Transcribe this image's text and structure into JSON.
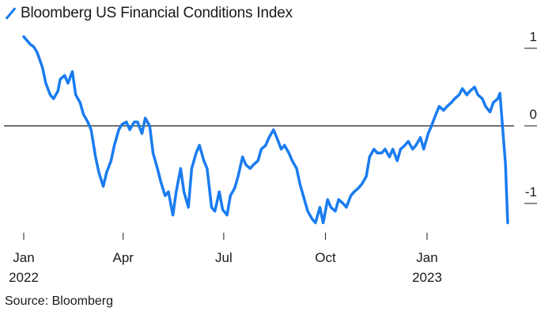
{
  "chart_data": {
    "type": "line",
    "title": "",
    "legend": "Bloomberg US Financial Conditions Index",
    "source": "Source: Bloomberg",
    "xlabel": "",
    "ylabel": "",
    "ylim": [
      -1.3,
      1.25
    ],
    "yticks": [
      {
        "value": 1,
        "label": "1"
      },
      {
        "value": 0,
        "label": "0"
      },
      {
        "value": -1,
        "label": "-1"
      }
    ],
    "xticks": [
      {
        "date": "2022-01-01",
        "label": "Jan",
        "sublabel": "2022"
      },
      {
        "date": "2022-04-01",
        "label": "Apr",
        "sublabel": ""
      },
      {
        "date": "2022-07-01",
        "label": "Jul",
        "sublabel": ""
      },
      {
        "date": "2022-10-01",
        "label": "Oct",
        "sublabel": ""
      },
      {
        "date": "2023-01-01",
        "label": "Jan",
        "sublabel": "2023"
      }
    ],
    "grid": false,
    "zero_line": true,
    "color": "#1a7cf0",
    "series": [
      {
        "name": "Bloomberg US Financial Conditions Index",
        "points": [
          [
            "2022-01-01",
            1.15
          ],
          [
            "2022-01-04",
            1.1
          ],
          [
            "2022-01-07",
            1.05
          ],
          [
            "2022-01-10",
            1.02
          ],
          [
            "2022-01-13",
            0.95
          ],
          [
            "2022-01-18",
            0.75
          ],
          [
            "2022-01-21",
            0.55
          ],
          [
            "2022-01-25",
            0.4
          ],
          [
            "2022-01-28",
            0.35
          ],
          [
            "2022-02-01",
            0.45
          ],
          [
            "2022-02-03",
            0.6
          ],
          [
            "2022-02-07",
            0.65
          ],
          [
            "2022-02-10",
            0.55
          ],
          [
            "2022-02-14",
            0.7
          ],
          [
            "2022-02-17",
            0.4
          ],
          [
            "2022-02-21",
            0.3
          ],
          [
            "2022-02-24",
            0.15
          ],
          [
            "2022-02-28",
            0.05
          ],
          [
            "2022-03-03",
            -0.05
          ],
          [
            "2022-03-07",
            -0.4
          ],
          [
            "2022-03-10",
            -0.6
          ],
          [
            "2022-03-14",
            -0.78
          ],
          [
            "2022-03-17",
            -0.6
          ],
          [
            "2022-03-21",
            -0.45
          ],
          [
            "2022-03-24",
            -0.25
          ],
          [
            "2022-03-28",
            -0.05
          ],
          [
            "2022-03-31",
            0.02
          ],
          [
            "2022-04-04",
            0.05
          ],
          [
            "2022-04-07",
            -0.05
          ],
          [
            "2022-04-11",
            0.05
          ],
          [
            "2022-04-14",
            0.05
          ],
          [
            "2022-04-18",
            -0.1
          ],
          [
            "2022-04-21",
            0.1
          ],
          [
            "2022-04-25",
            0.0
          ],
          [
            "2022-04-28",
            -0.35
          ],
          [
            "2022-05-02",
            -0.55
          ],
          [
            "2022-05-05",
            -0.72
          ],
          [
            "2022-05-09",
            -0.9
          ],
          [
            "2022-05-12",
            -0.85
          ],
          [
            "2022-05-16",
            -1.15
          ],
          [
            "2022-05-19",
            -0.85
          ],
          [
            "2022-05-23",
            -0.55
          ],
          [
            "2022-05-26",
            -0.85
          ],
          [
            "2022-05-30",
            -1.05
          ],
          [
            "2022-06-02",
            -0.55
          ],
          [
            "2022-06-06",
            -0.35
          ],
          [
            "2022-06-09",
            -0.25
          ],
          [
            "2022-06-13",
            -0.45
          ],
          [
            "2022-06-16",
            -0.55
          ],
          [
            "2022-06-20",
            -1.05
          ],
          [
            "2022-06-23",
            -1.1
          ],
          [
            "2022-06-27",
            -0.85
          ],
          [
            "2022-06-30",
            -1.08
          ],
          [
            "2022-07-04",
            -1.15
          ],
          [
            "2022-07-07",
            -0.9
          ],
          [
            "2022-07-11",
            -0.8
          ],
          [
            "2022-07-14",
            -0.65
          ],
          [
            "2022-07-18",
            -0.4
          ],
          [
            "2022-07-21",
            -0.5
          ],
          [
            "2022-07-25",
            -0.55
          ],
          [
            "2022-07-28",
            -0.5
          ],
          [
            "2022-08-01",
            -0.45
          ],
          [
            "2022-08-04",
            -0.3
          ],
          [
            "2022-08-08",
            -0.25
          ],
          [
            "2022-08-11",
            -0.15
          ],
          [
            "2022-08-15",
            -0.05
          ],
          [
            "2022-08-18",
            -0.15
          ],
          [
            "2022-08-22",
            -0.3
          ],
          [
            "2022-08-25",
            -0.25
          ],
          [
            "2022-08-29",
            -0.35
          ],
          [
            "2022-09-01",
            -0.45
          ],
          [
            "2022-09-05",
            -0.55
          ],
          [
            "2022-09-08",
            -0.75
          ],
          [
            "2022-09-12",
            -0.95
          ],
          [
            "2022-09-15",
            -1.1
          ],
          [
            "2022-09-19",
            -1.2
          ],
          [
            "2022-09-22",
            -1.25
          ],
          [
            "2022-09-26",
            -1.05
          ],
          [
            "2022-09-29",
            -1.25
          ],
          [
            "2022-10-03",
            -0.95
          ],
          [
            "2022-10-06",
            -1.05
          ],
          [
            "2022-10-10",
            -1.1
          ],
          [
            "2022-10-13",
            -0.95
          ],
          [
            "2022-10-17",
            -1.0
          ],
          [
            "2022-10-20",
            -1.05
          ],
          [
            "2022-10-24",
            -0.9
          ],
          [
            "2022-10-27",
            -0.85
          ],
          [
            "2022-10-31",
            -0.8
          ],
          [
            "2022-11-03",
            -0.75
          ],
          [
            "2022-11-07",
            -0.65
          ],
          [
            "2022-11-10",
            -0.4
          ],
          [
            "2022-11-14",
            -0.3
          ],
          [
            "2022-11-17",
            -0.35
          ],
          [
            "2022-11-21",
            -0.35
          ],
          [
            "2022-11-24",
            -0.3
          ],
          [
            "2022-11-28",
            -0.4
          ],
          [
            "2022-12-01",
            -0.3
          ],
          [
            "2022-12-05",
            -0.45
          ],
          [
            "2022-12-08",
            -0.3
          ],
          [
            "2022-12-12",
            -0.25
          ],
          [
            "2022-12-15",
            -0.2
          ],
          [
            "2022-12-19",
            -0.3
          ],
          [
            "2022-12-22",
            -0.25
          ],
          [
            "2022-12-26",
            -0.15
          ],
          [
            "2022-12-29",
            -0.3
          ],
          [
            "2023-01-02",
            -0.1
          ],
          [
            "2023-01-05",
            0.0
          ],
          [
            "2023-01-09",
            0.15
          ],
          [
            "2023-01-12",
            0.25
          ],
          [
            "2023-01-16",
            0.2
          ],
          [
            "2023-01-19",
            0.25
          ],
          [
            "2023-01-23",
            0.3
          ],
          [
            "2023-01-26",
            0.35
          ],
          [
            "2023-01-30",
            0.4
          ],
          [
            "2023-02-02",
            0.48
          ],
          [
            "2023-02-06",
            0.4
          ],
          [
            "2023-02-09",
            0.45
          ],
          [
            "2023-02-13",
            0.5
          ],
          [
            "2023-02-16",
            0.4
          ],
          [
            "2023-02-20",
            0.35
          ],
          [
            "2023-02-23",
            0.25
          ],
          [
            "2023-02-27",
            0.18
          ],
          [
            "2023-03-02",
            0.3
          ],
          [
            "2023-03-06",
            0.35
          ],
          [
            "2023-03-08",
            0.42
          ],
          [
            "2023-03-10",
            0.05
          ],
          [
            "2023-03-13",
            -0.5
          ],
          [
            "2023-03-15",
            -1.25
          ]
        ]
      }
    ]
  }
}
